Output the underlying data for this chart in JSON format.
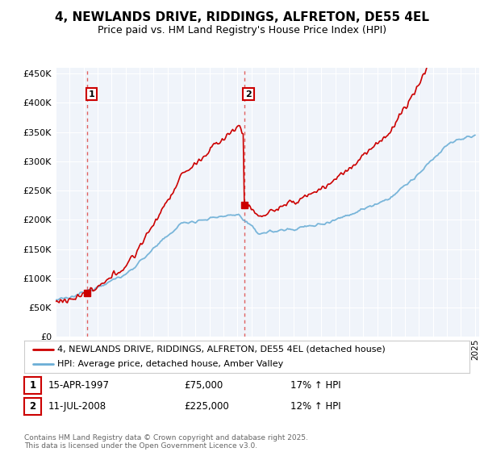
{
  "title": "4, NEWLANDS DRIVE, RIDDINGS, ALFRETON, DE55 4EL",
  "subtitle": "Price paid vs. HM Land Registry's House Price Index (HPI)",
  "legend_line1": "4, NEWLANDS DRIVE, RIDDINGS, ALFRETON, DE55 4EL (detached house)",
  "legend_line2": "HPI: Average price, detached house, Amber Valley",
  "footnote": "Contains HM Land Registry data © Crown copyright and database right 2025.\nThis data is licensed under the Open Government Licence v3.0.",
  "annotation1_label": "1",
  "annotation1_date": "15-APR-1997",
  "annotation1_price": "£75,000",
  "annotation1_hpi": "17% ↑ HPI",
  "annotation2_label": "2",
  "annotation2_date": "11-JUL-2008",
  "annotation2_price": "£225,000",
  "annotation2_hpi": "12% ↑ HPI",
  "house_color": "#cc0000",
  "hpi_color": "#6baed6",
  "vline_color": "#e06060",
  "bg_color": "#ffffff",
  "plot_bg_color": "#f0f4fa",
  "grid_color": "#ffffff",
  "ylim": [
    0,
    460000
  ],
  "yticks": [
    0,
    50000,
    100000,
    150000,
    200000,
    250000,
    300000,
    350000,
    400000,
    450000
  ],
  "year_start": 1995,
  "year_end": 2025,
  "purchase1_year": 1997.29,
  "purchase1_price": 75000,
  "purchase2_year": 2008.54,
  "purchase2_price": 225000
}
